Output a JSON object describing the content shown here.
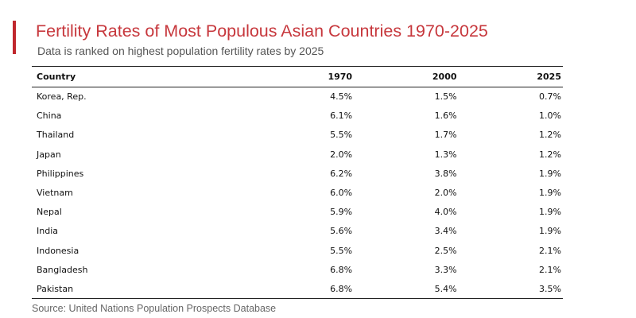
{
  "colors": {
    "accent": "#c0272d",
    "title": "#c7383d",
    "subtitle": "#555555",
    "text": "#111111",
    "rule": "#222222"
  },
  "chart_data": {
    "type": "table",
    "title": "Fertility Rates of Most Populous Asian Countries 1970-2025",
    "subtitle": "Data is ranked on highest population fertility rates by 2025",
    "columns": [
      "Country",
      "1970",
      "2000",
      "2025"
    ],
    "rows": [
      [
        "Korea, Rep.",
        "4.5%",
        "1.5%",
        "0.7%"
      ],
      [
        "China",
        "6.1%",
        "1.6%",
        "1.0%"
      ],
      [
        "Thailand",
        "5.5%",
        "1.7%",
        "1.2%"
      ],
      [
        "Japan",
        "2.0%",
        "1.3%",
        "1.2%"
      ],
      [
        "Philippines",
        "6.2%",
        "3.8%",
        "1.9%"
      ],
      [
        "Vietnam",
        "6.0%",
        "2.0%",
        "1.9%"
      ],
      [
        "Nepal",
        "5.9%",
        "4.0%",
        "1.9%"
      ],
      [
        "India",
        "5.6%",
        "3.4%",
        "1.9%"
      ],
      [
        "Indonesia",
        "5.5%",
        "2.5%",
        "2.1%"
      ],
      [
        "Bangladesh",
        "6.8%",
        "3.3%",
        "2.1%"
      ],
      [
        "Pakistan",
        "6.8%",
        "5.4%",
        "3.5%"
      ]
    ],
    "source": "Source: United Nations Population Prospects Database"
  }
}
